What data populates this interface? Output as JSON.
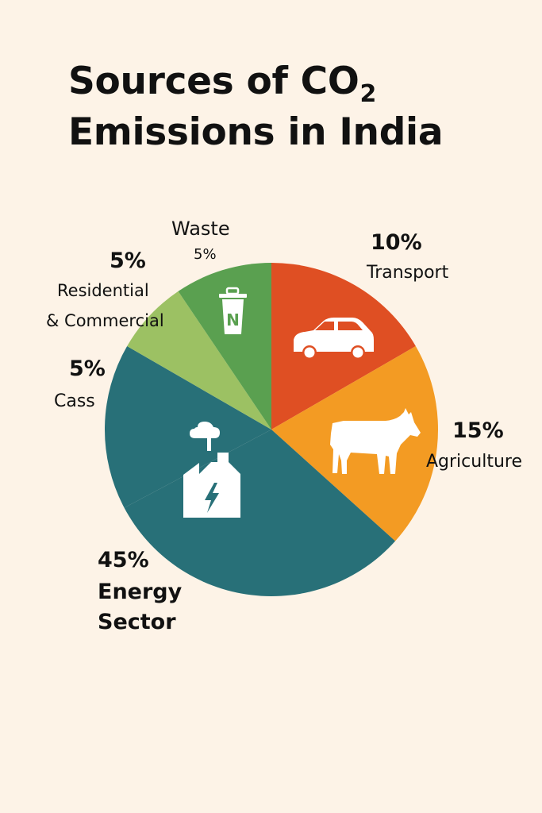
{
  "title": {
    "line1": "Sources of CO",
    "subscript": "2",
    "line2": "Emissions in India"
  },
  "chart_data": {
    "type": "pie",
    "title": "Sources of CO2 Emissions in India",
    "slices": [
      {
        "label": "Transport",
        "percent_label": "10%",
        "value": 10,
        "color": "#df4f23",
        "icon": "car-icon"
      },
      {
        "label": "Agriculture",
        "percent_label": "15%",
        "value": 15,
        "color": "#f39b23",
        "icon": "cow-icon"
      },
      {
        "label": "Energy Sector",
        "percent_label": "45%",
        "value": 45,
        "color": "#287078",
        "icon": "factory-icon"
      },
      {
        "label": "Cass",
        "percent_label": "5%",
        "value": 5,
        "color": "#287078",
        "icon": ""
      },
      {
        "label": "Residential & Commercial",
        "percent_label": "5%",
        "value": 5,
        "color": "#9cc163",
        "icon": ""
      },
      {
        "label": "Waste",
        "percent_label": "5%",
        "value": 5,
        "color": "#5aa050",
        "icon": "trash-bin-icon"
      }
    ]
  },
  "labels": {
    "waste_name": "Waste",
    "waste_pct": "5%",
    "transport_pct": "10%",
    "transport_name": "Transport",
    "residential_pct": "5%",
    "residential_name_1": "Residential",
    "residential_name_2": "& Commercial",
    "cass_pct": "5%",
    "cass_name": "Cass",
    "agriculture_pct": "15%",
    "agriculture_name": "Agriculture",
    "energy_pct": "45%",
    "energy_name_1": "Energy",
    "energy_name_2": "Sector"
  },
  "colors": {
    "background": "#fdf3e7",
    "icon": "#ffffff"
  }
}
